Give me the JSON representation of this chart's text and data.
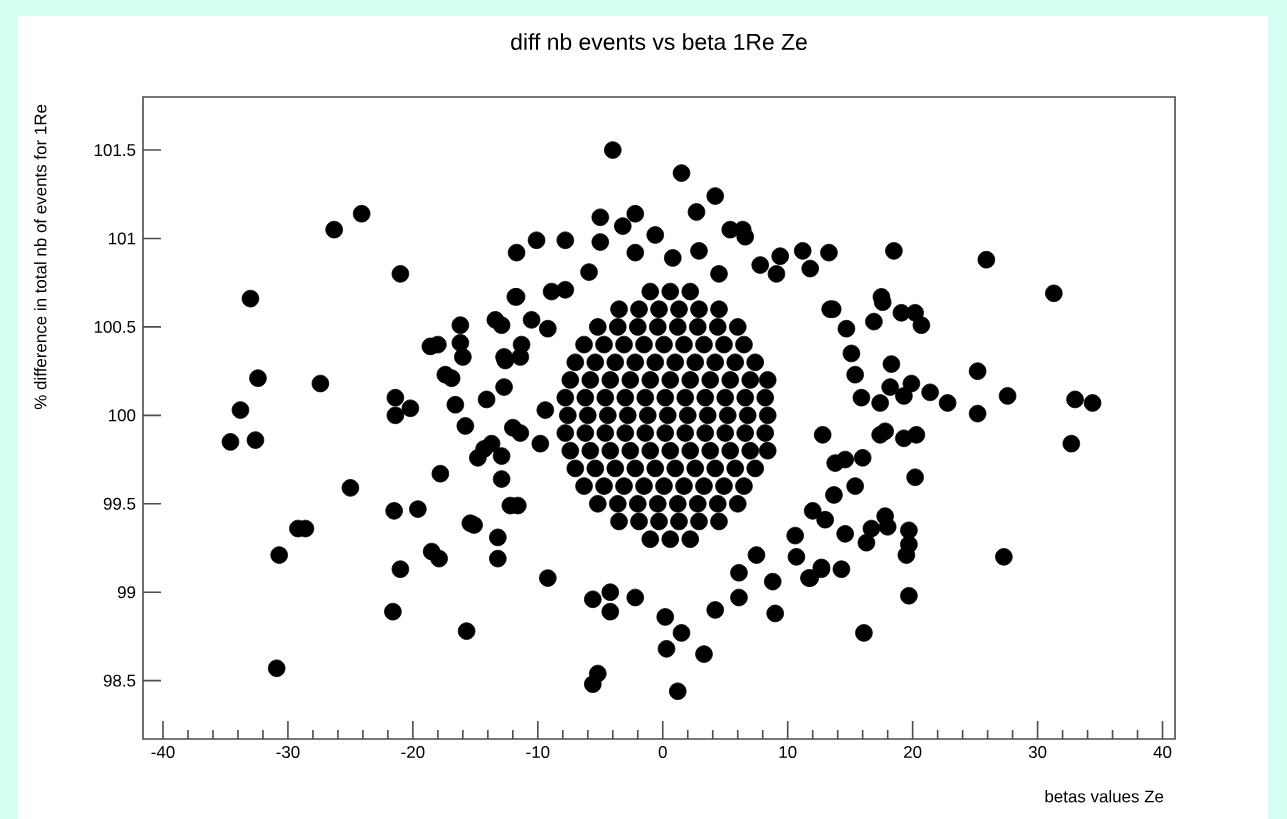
{
  "chart_data": {
    "type": "scatter",
    "title": "diff nb events vs beta 1Re Ze",
    "xlabel": "betas values Ze",
    "ylabel": "% difference in total nb of events for 1Re",
    "xlim": [
      -41.6,
      41
    ],
    "ylim": [
      98.17,
      101.8
    ],
    "xticks": [
      -40,
      -30,
      -20,
      -10,
      0,
      10,
      20,
      30,
      40
    ],
    "yticks": [
      98.5,
      99,
      99.5,
      100,
      100.5,
      101,
      101.5
    ],
    "grid": false,
    "marker": "circle",
    "series": [
      {
        "color": "#000000",
        "x": [
          -34.6,
          -33.8,
          -33.0,
          -32.4,
          -32.6,
          -30.7,
          -29.2,
          -28.6,
          -27.4,
          -26.3,
          -25.0,
          -24.1,
          -21.5,
          -21.6,
          -21.4,
          -21.4,
          -21.0,
          -21.0,
          -20.2,
          -19.6,
          -30.9,
          -18.6,
          -18.0,
          -18.5,
          -17.9,
          -17.8,
          -17.4,
          -16.9,
          -16.6,
          -16.2,
          -16.2,
          -16.0,
          -15.8,
          -15.7,
          -15.4,
          -14.8,
          -14.3,
          -14.1,
          -13.7,
          -13.4,
          -12.9,
          -13.2,
          -13.2,
          -12.9,
          -12.7,
          -12.7,
          -12.2,
          -11.6,
          -12.0,
          -11.7,
          -11.7,
          -11.4,
          -11.3,
          -11.4,
          -10.5,
          -10.1,
          -9.8,
          -9.2,
          -9.4,
          -9.2,
          -15.1,
          -12.6,
          -12.9,
          -8.9,
          -7.8,
          -11.8,
          -4.0,
          1.5,
          4.2,
          2.7,
          -5.0,
          -2.2,
          -3.2,
          -0.6,
          -7.8,
          -5.0,
          -2.2,
          2.9,
          5.4,
          6.4,
          6.6,
          9.4,
          11.2,
          11.8,
          13.3,
          -5.9,
          7.8,
          9.1,
          0.8,
          4.5,
          13.4,
          -5.6,
          -4.2,
          -4.2,
          -2.2,
          0.2,
          1.5,
          0.3,
          3.3,
          4.2,
          6.1,
          9.0,
          -5.2,
          -5.6,
          1.2,
          6.1,
          8.8,
          11.8,
          12.7,
          7.5,
          10.6,
          10.7,
          18.5,
          25.9,
          31.3,
          17.5,
          17.6,
          16.9,
          19.1,
          20.2,
          20.7,
          13.6,
          14.7,
          18.3,
          15.1,
          15.4,
          25.2,
          18.2,
          19.9,
          15.9,
          17.4,
          19.3,
          21.4,
          22.8,
          25.2,
          27.6,
          33.0,
          34.4,
          32.7,
          17.4,
          17.8,
          19.3,
          20.3,
          12.8,
          16.0,
          14.6,
          13.8,
          20.2,
          15.4,
          13.7,
          17.8,
          18.0,
          16.7,
          19.7,
          19.7,
          19.5,
          14.6,
          16.3,
          27.3,
          19.7,
          16.1,
          12.7,
          14.3,
          11.7,
          13.0,
          12.0,
          -1.0,
          0.6,
          2.2,
          -3.5,
          -1.9,
          -0.3,
          1.3,
          2.9,
          4.5,
          -5.2,
          -3.6,
          -2.0,
          -0.4,
          1.2,
          2.8,
          4.4,
          6.0,
          -6.3,
          -4.7,
          -3.1,
          -1.5,
          0.1,
          1.7,
          3.3,
          4.9,
          6.5,
          -7.0,
          -5.4,
          -3.8,
          -2.2,
          -0.6,
          1.0,
          2.6,
          4.2,
          5.8,
          7.4,
          -7.4,
          -5.8,
          -4.2,
          -2.6,
          -1.0,
          0.6,
          2.2,
          3.8,
          5.4,
          7.0,
          8.4,
          -7.8,
          -6.2,
          -4.6,
          -3.0,
          -1.4,
          0.2,
          1.8,
          3.4,
          5.0,
          6.6,
          8.2,
          -7.6,
          -6.0,
          -4.4,
          -2.8,
          -1.2,
          0.4,
          2.0,
          3.6,
          5.2,
          6.8,
          8.4,
          -7.8,
          -6.2,
          -4.6,
          -3.0,
          -1.4,
          0.2,
          1.8,
          3.4,
          5.0,
          6.6,
          8.2,
          -7.4,
          -5.8,
          -4.2,
          -2.6,
          -1.0,
          0.6,
          2.2,
          3.8,
          5.4,
          7.0,
          8.4,
          -7.0,
          -5.4,
          -3.8,
          -2.2,
          -0.6,
          1.0,
          2.6,
          4.2,
          5.8,
          7.4,
          -6.3,
          -4.7,
          -3.1,
          -1.5,
          0.1,
          1.7,
          3.3,
          4.9,
          6.5,
          -5.2,
          -3.6,
          -2.0,
          -0.4,
          1.2,
          2.8,
          4.4,
          6.0,
          -3.5,
          -1.9,
          -0.3,
          1.3,
          2.9,
          4.5,
          -1.0,
          0.6,
          2.2
        ],
        "values": [
          99.85,
          100.03,
          100.66,
          100.21,
          99.86,
          99.21,
          99.36,
          99.36,
          100.18,
          101.05,
          99.59,
          101.14,
          99.46,
          98.89,
          100.1,
          100.0,
          100.8,
          99.13,
          100.04,
          99.47,
          98.57,
          100.39,
          100.4,
          99.23,
          99.19,
          99.67,
          100.23,
          100.21,
          100.06,
          100.51,
          100.41,
          100.33,
          99.94,
          98.78,
          99.39,
          99.76,
          99.81,
          100.09,
          99.84,
          100.54,
          100.51,
          99.31,
          99.19,
          99.64,
          100.16,
          100.33,
          99.49,
          99.49,
          99.93,
          100.67,
          100.92,
          100.33,
          100.4,
          99.9,
          100.54,
          100.99,
          99.84,
          99.08,
          100.03,
          100.49,
          99.38,
          100.31,
          99.77,
          100.7,
          100.71,
          100.67,
          101.5,
          101.37,
          101.24,
          101.15,
          101.12,
          101.14,
          101.07,
          101.02,
          100.99,
          100.98,
          100.92,
          100.93,
          101.05,
          101.05,
          101.01,
          100.9,
          100.93,
          100.83,
          100.92,
          100.81,
          100.85,
          100.8,
          100.89,
          100.8,
          100.6,
          98.96,
          99.0,
          98.89,
          98.97,
          98.86,
          98.77,
          98.68,
          98.65,
          98.9,
          98.97,
          98.88,
          98.54,
          98.48,
          98.44,
          99.11,
          99.06,
          99.08,
          99.14,
          99.21,
          99.32,
          99.2,
          100.93,
          100.88,
          100.69,
          100.67,
          100.64,
          100.53,
          100.58,
          100.58,
          100.51,
          100.6,
          100.49,
          100.29,
          100.35,
          100.23,
          100.25,
          100.16,
          100.18,
          100.1,
          100.07,
          100.11,
          100.13,
          100.07,
          100.01,
          100.11,
          100.09,
          100.07,
          99.84,
          99.89,
          99.91,
          99.87,
          99.89,
          99.89,
          99.76,
          99.75,
          99.73,
          99.65,
          99.6,
          99.55,
          99.43,
          99.37,
          99.36,
          99.35,
          99.27,
          99.21,
          99.33,
          99.28,
          99.2,
          98.98,
          98.77,
          99.13,
          99.13,
          99.08,
          99.41,
          99.46,
          100.7,
          100.7,
          100.7,
          100.6,
          100.6,
          100.6,
          100.6,
          100.6,
          100.6,
          100.5,
          100.5,
          100.5,
          100.5,
          100.5,
          100.5,
          100.5,
          100.5,
          100.4,
          100.4,
          100.4,
          100.4,
          100.4,
          100.4,
          100.4,
          100.4,
          100.4,
          100.3,
          100.3,
          100.3,
          100.3,
          100.3,
          100.3,
          100.3,
          100.3,
          100.3,
          100.3,
          100.2,
          100.2,
          100.2,
          100.2,
          100.2,
          100.2,
          100.2,
          100.2,
          100.2,
          100.2,
          100.2,
          100.1,
          100.1,
          100.1,
          100.1,
          100.1,
          100.1,
          100.1,
          100.1,
          100.1,
          100.1,
          100.1,
          100.0,
          100.0,
          100.0,
          100.0,
          100.0,
          100.0,
          100.0,
          100.0,
          100.0,
          100.0,
          100.0,
          99.9,
          99.9,
          99.9,
          99.9,
          99.9,
          99.9,
          99.9,
          99.9,
          99.9,
          99.9,
          99.9,
          99.8,
          99.8,
          99.8,
          99.8,
          99.8,
          99.8,
          99.8,
          99.8,
          99.8,
          99.8,
          99.8,
          99.7,
          99.7,
          99.7,
          99.7,
          99.7,
          99.7,
          99.7,
          99.7,
          99.7,
          99.7,
          99.6,
          99.6,
          99.6,
          99.6,
          99.6,
          99.6,
          99.6,
          99.6,
          99.6,
          99.5,
          99.5,
          99.5,
          99.5,
          99.5,
          99.5,
          99.5,
          99.5,
          99.4,
          99.4,
          99.4,
          99.4,
          99.4,
          99.4,
          99.3,
          99.3,
          99.3
        ]
      }
    ]
  }
}
